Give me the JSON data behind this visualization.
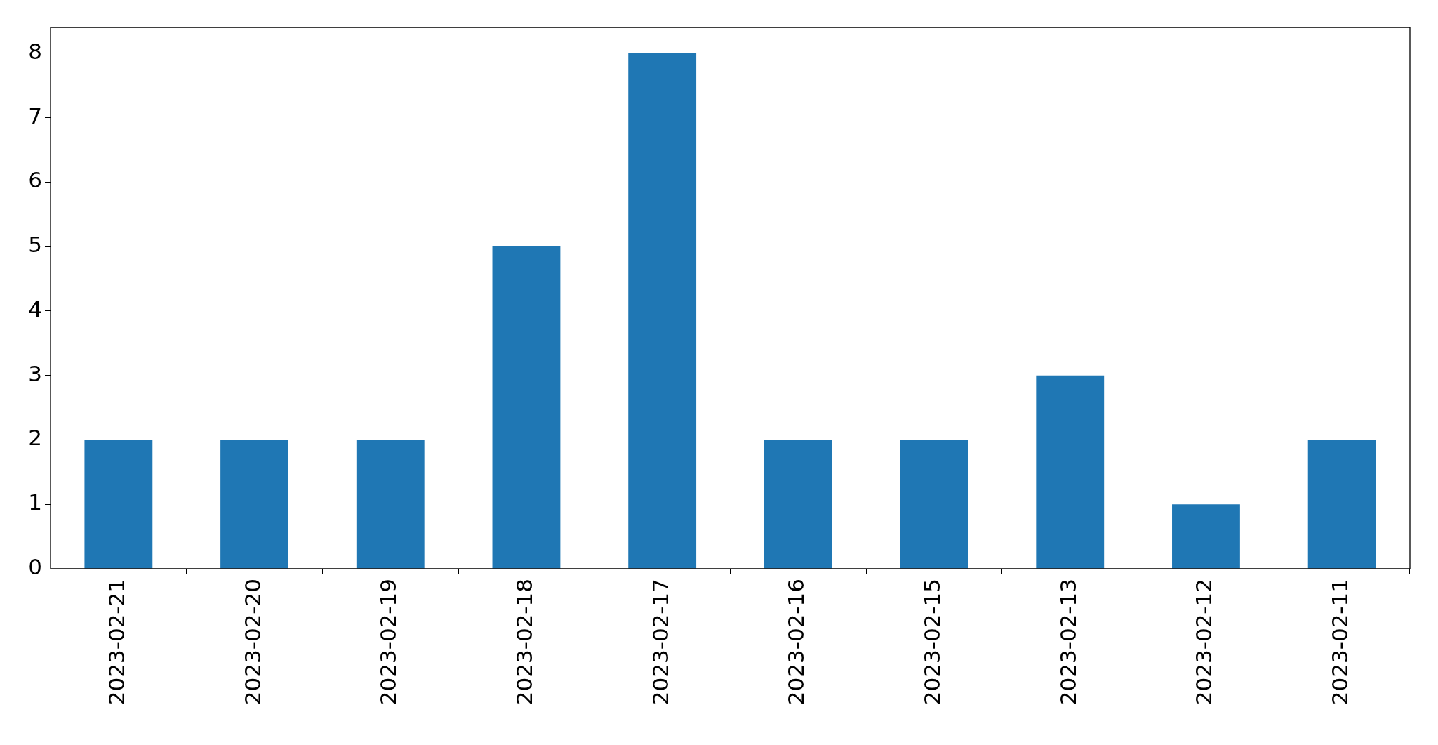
{
  "chart_data": {
    "type": "bar",
    "categories": [
      "2023-02-21",
      "2023-02-20",
      "2023-02-19",
      "2023-02-18",
      "2023-02-17",
      "2023-02-16",
      "2023-02-15",
      "2023-02-13",
      "2023-02-12",
      "2023-02-11"
    ],
    "values": [
      2,
      2,
      2,
      5,
      8,
      2,
      2,
      3,
      1,
      2
    ],
    "color": "#1f77b4",
    "ylim": [
      0,
      8.4
    ],
    "yticks": [
      0,
      1,
      2,
      3,
      4,
      5,
      6,
      7,
      8
    ],
    "grid": false,
    "legend": false
  }
}
